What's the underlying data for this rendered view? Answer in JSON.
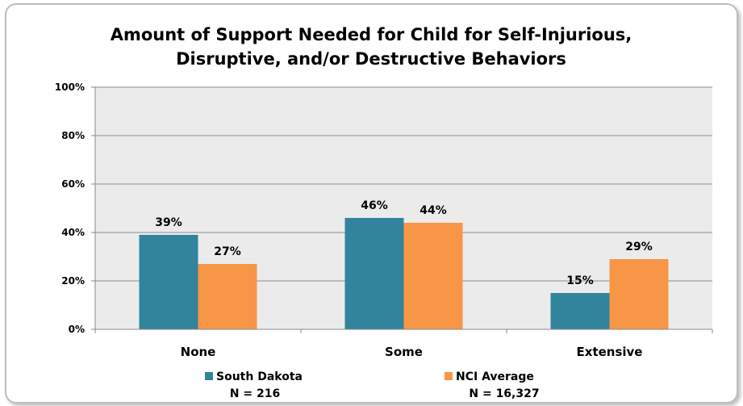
{
  "chart_data": {
    "type": "bar",
    "title_lines": [
      "Amount of Support Needed for Child for Self-Injurious,",
      "Disruptive, and/or Destructive Behaviors"
    ],
    "categories": [
      "None",
      "Some",
      "Extensive"
    ],
    "series": [
      {
        "name": "South Dakota",
        "n_label": "N = 216",
        "color": "#31849b",
        "values": [
          39,
          46,
          15
        ],
        "labels": [
          "39%",
          "46%",
          "15%"
        ]
      },
      {
        "name": "NCI Average",
        "n_label": "N = 16,327",
        "color": "#f79646",
        "values": [
          27,
          44,
          29
        ],
        "labels": [
          "27%",
          "44%",
          "29%"
        ]
      }
    ],
    "y_ticks": [
      {
        "value": 0,
        "label": "0%"
      },
      {
        "value": 20,
        "label": "20%"
      },
      {
        "value": 40,
        "label": "40%"
      },
      {
        "value": 60,
        "label": "60%"
      },
      {
        "value": 80,
        "label": "80%"
      },
      {
        "value": 100,
        "label": "100%"
      }
    ],
    "ylim": [
      0,
      100
    ],
    "grid": true,
    "plot_background": "#ebebeb",
    "legend_position": "bottom"
  }
}
